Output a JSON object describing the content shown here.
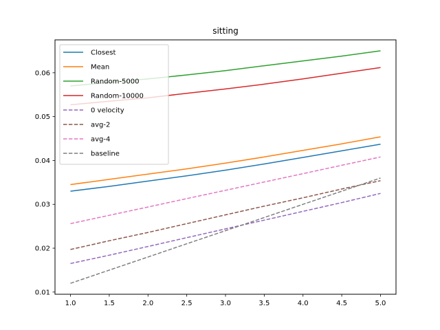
{
  "chart_data": {
    "type": "line",
    "title": "sitting",
    "xlabel": "",
    "ylabel": "",
    "xlim": [
      0.8,
      5.2
    ],
    "ylim": [
      0.0095,
      0.0675
    ],
    "x_ticks": [
      1.0,
      1.5,
      2.0,
      2.5,
      3.0,
      3.5,
      4.0,
      4.5,
      5.0
    ],
    "x_tick_labels": [
      "1.0",
      "1.5",
      "2.0",
      "2.5",
      "3.0",
      "3.5",
      "4.0",
      "4.5",
      "5.0"
    ],
    "y_ticks": [
      0.01,
      0.02,
      0.03,
      0.04,
      0.05,
      0.06
    ],
    "y_tick_labels": [
      "0.01",
      "0.02",
      "0.03",
      "0.04",
      "0.05",
      "0.06"
    ],
    "grid": false,
    "legend_position": "top-left",
    "x": [
      1.0,
      1.5,
      2.0,
      2.5,
      3.0,
      3.5,
      4.0,
      4.5,
      5.0
    ],
    "series": [
      {
        "name": "Closest",
        "color": "#1f77b4",
        "dash": "solid",
        "values": [
          0.033,
          0.0341,
          0.0353,
          0.0365,
          0.0378,
          0.0392,
          0.0407,
          0.0422,
          0.0437
        ]
      },
      {
        "name": "Mean",
        "color": "#ff7f0e",
        "dash": "solid",
        "values": [
          0.0345,
          0.0357,
          0.0369,
          0.0381,
          0.0394,
          0.0408,
          0.0423,
          0.0438,
          0.0454
        ]
      },
      {
        "name": "Random-5000",
        "color": "#2ca02c",
        "dash": "solid",
        "values": [
          0.057,
          0.0578,
          0.0586,
          0.0595,
          0.0605,
          0.0616,
          0.0627,
          0.0638,
          0.065
        ]
      },
      {
        "name": "Random-10000",
        "color": "#d62728",
        "dash": "solid",
        "values": [
          0.0527,
          0.0535,
          0.0543,
          0.0553,
          0.0563,
          0.0574,
          0.0586,
          0.0599,
          0.0612
        ]
      },
      {
        "name": "0 velocity",
        "color": "#9467bd",
        "dash": "dashed",
        "values": [
          0.0165,
          0.0184,
          0.0204,
          0.0224,
          0.0244,
          0.0264,
          0.0284,
          0.0304,
          0.0325
        ]
      },
      {
        "name": "avg-2",
        "color": "#8c564b",
        "dash": "dashed",
        "values": [
          0.0197,
          0.0217,
          0.0236,
          0.0256,
          0.0276,
          0.0296,
          0.0315,
          0.0335,
          0.0354
        ]
      },
      {
        "name": "avg-4",
        "color": "#e377c2",
        "dash": "dashed",
        "values": [
          0.0256,
          0.0275,
          0.0294,
          0.0313,
          0.0332,
          0.0351,
          0.037,
          0.0389,
          0.0408
        ]
      },
      {
        "name": "baseline",
        "color": "#7f7f7f",
        "dash": "dashed",
        "values": [
          0.012,
          0.015,
          0.018,
          0.021,
          0.024,
          0.027,
          0.03,
          0.033,
          0.036
        ]
      }
    ]
  }
}
